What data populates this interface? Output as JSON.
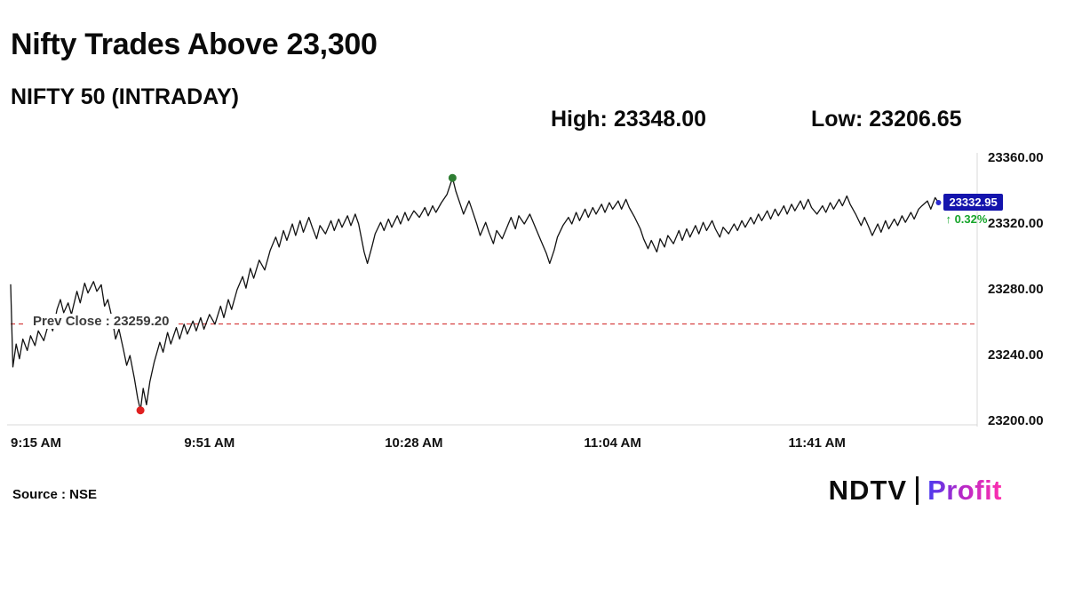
{
  "header": {
    "title": "Nifty Trades Above 23,300",
    "subtitle": "NIFTY 50 (INTRADAY)"
  },
  "stats": {
    "high": "High: 23348.00",
    "low": "Low: 23206.65"
  },
  "footer": {
    "source": "Source : NSE",
    "logo_ndtv": "NDTV",
    "logo_profit": "Profit"
  },
  "chart_data": {
    "type": "line",
    "title": "NIFTY 50 (INTRADAY)",
    "x_unit": "minutes since 9:15 AM",
    "x_domain": [
      0,
      175
    ],
    "y_domain": [
      23200,
      23360
    ],
    "grid": "off",
    "line_color": "#121212",
    "y_ticks": [
      {
        "value": 23360,
        "label": "23360.00"
      },
      {
        "value": 23320,
        "label": "23320.00"
      },
      {
        "value": 23280,
        "label": "23280.00"
      },
      {
        "value": 23240,
        "label": "23240.00"
      },
      {
        "value": 23200,
        "label": "23200.00"
      }
    ],
    "x_ticks": [
      {
        "minute": 0,
        "label": "9:15 AM"
      },
      {
        "minute": 36,
        "label": "9:51 AM"
      },
      {
        "minute": 73,
        "label": "10:28 AM"
      },
      {
        "minute": 109,
        "label": "11:04 AM"
      },
      {
        "minute": 146,
        "label": "11:41 AM"
      }
    ],
    "prev_close": {
      "value": 23259.2,
      "label": "Prev Close : 23259.20",
      "color": "#d64040"
    },
    "high": {
      "minute": 80,
      "value": 23348.0,
      "label": "High: 23348.00",
      "marker_color": "#2e7d32"
    },
    "low": {
      "minute": 23.5,
      "value": 23206.65,
      "label": "Low: 23206.65",
      "marker_color": "#e02020"
    },
    "last": {
      "value": 23332.95,
      "label": "23332.95",
      "change_label": "↑ 0.32%",
      "change_color": "#17a52b",
      "chip_bg": "#1414ad",
      "marker_color": "#2a2ad0"
    },
    "series": [
      {
        "name": "NIFTY 50",
        "points": [
          [
            0,
            23283
          ],
          [
            0.4,
            23233
          ],
          [
            1,
            23247
          ],
          [
            1.6,
            23238
          ],
          [
            2.2,
            23250
          ],
          [
            3,
            23243
          ],
          [
            3.6,
            23252
          ],
          [
            4.4,
            23246
          ],
          [
            5,
            23255
          ],
          [
            6,
            23249
          ],
          [
            7,
            23261
          ],
          [
            7.6,
            23255
          ],
          [
            8.4,
            23268
          ],
          [
            9,
            23274
          ],
          [
            9.6,
            23266
          ],
          [
            10.4,
            23272
          ],
          [
            11,
            23265
          ],
          [
            12,
            23279
          ],
          [
            12.6,
            23272
          ],
          [
            13.4,
            23284
          ],
          [
            14,
            23278
          ],
          [
            15,
            23285
          ],
          [
            15.6,
            23279
          ],
          [
            16.4,
            23283
          ],
          [
            17,
            23270
          ],
          [
            17.6,
            23274
          ],
          [
            18.4,
            23262
          ],
          [
            19,
            23250
          ],
          [
            19.6,
            23256
          ],
          [
            20.4,
            23244
          ],
          [
            21,
            23234
          ],
          [
            21.6,
            23240
          ],
          [
            22.4,
            23226
          ],
          [
            23,
            23214
          ],
          [
            23.5,
            23206.65
          ],
          [
            24,
            23220
          ],
          [
            24.6,
            23210
          ],
          [
            25.2,
            23224
          ],
          [
            26,
            23236
          ],
          [
            27,
            23248
          ],
          [
            27.6,
            23242
          ],
          [
            28.4,
            23254
          ],
          [
            29,
            23247
          ],
          [
            30,
            23257
          ],
          [
            30.6,
            23250
          ],
          [
            31.4,
            23259
          ],
          [
            32,
            23253
          ],
          [
            33,
            23261
          ],
          [
            33.6,
            23255
          ],
          [
            34.4,
            23263
          ],
          [
            35,
            23256
          ],
          [
            36,
            23265
          ],
          [
            37,
            23259
          ],
          [
            38,
            23270
          ],
          [
            38.6,
            23263
          ],
          [
            39.4,
            23274
          ],
          [
            40,
            23268
          ],
          [
            41,
            23280
          ],
          [
            42,
            23288
          ],
          [
            42.6,
            23281
          ],
          [
            43.4,
            23293
          ],
          [
            44,
            23287
          ],
          [
            45,
            23298
          ],
          [
            46,
            23292
          ],
          [
            47,
            23304
          ],
          [
            48,
            23312
          ],
          [
            48.6,
            23306
          ],
          [
            49.4,
            23316
          ],
          [
            50,
            23310
          ],
          [
            51,
            23320
          ],
          [
            51.6,
            23313
          ],
          [
            52.4,
            23322
          ],
          [
            53,
            23315
          ],
          [
            54,
            23324
          ],
          [
            54.6,
            23318
          ],
          [
            55.4,
            23311
          ],
          [
            56,
            23319
          ],
          [
            57,
            23314
          ],
          [
            58,
            23322
          ],
          [
            58.6,
            23316
          ],
          [
            59.4,
            23323
          ],
          [
            60,
            23318
          ],
          [
            61,
            23325
          ],
          [
            61.6,
            23319
          ],
          [
            62.4,
            23326
          ],
          [
            63,
            23320
          ],
          [
            64,
            23303
          ],
          [
            64.6,
            23296
          ],
          [
            65.4,
            23306
          ],
          [
            66,
            23314
          ],
          [
            67,
            23321
          ],
          [
            67.6,
            23316
          ],
          [
            68.4,
            23323
          ],
          [
            69,
            23318
          ],
          [
            70,
            23325
          ],
          [
            70.6,
            23320
          ],
          [
            71.4,
            23327
          ],
          [
            72,
            23322
          ],
          [
            73,
            23328
          ],
          [
            74,
            23324
          ],
          [
            75,
            23330
          ],
          [
            75.6,
            23325
          ],
          [
            76.4,
            23331
          ],
          [
            77,
            23327
          ],
          [
            78,
            23333
          ],
          [
            79,
            23338
          ],
          [
            80,
            23348
          ],
          [
            80.6,
            23340
          ],
          [
            81.4,
            23332
          ],
          [
            82,
            23326
          ],
          [
            83,
            23334
          ],
          [
            83.6,
            23328
          ],
          [
            84.4,
            23320
          ],
          [
            85,
            23313
          ],
          [
            86,
            23321
          ],
          [
            86.6,
            23315
          ],
          [
            87.4,
            23308
          ],
          [
            88,
            23316
          ],
          [
            89,
            23311
          ],
          [
            90,
            23319
          ],
          [
            90.6,
            23324
          ],
          [
            91.4,
            23317
          ],
          [
            92,
            23325
          ],
          [
            93,
            23320
          ],
          [
            94,
            23326
          ],
          [
            95,
            23318
          ],
          [
            96,
            23310
          ],
          [
            97,
            23302
          ],
          [
            97.6,
            23296
          ],
          [
            98.4,
            23304
          ],
          [
            99,
            23312
          ],
          [
            100,
            23319
          ],
          [
            101,
            23324
          ],
          [
            101.6,
            23320
          ],
          [
            102.4,
            23327
          ],
          [
            103,
            23322
          ],
          [
            104,
            23329
          ],
          [
            104.6,
            23324
          ],
          [
            105.4,
            23330
          ],
          [
            106,
            23326
          ],
          [
            107,
            23332
          ],
          [
            107.6,
            23327
          ],
          [
            108.4,
            23333
          ],
          [
            109,
            23329
          ],
          [
            110,
            23334
          ],
          [
            110.6,
            23329
          ],
          [
            111.4,
            23335
          ],
          [
            112,
            23330
          ],
          [
            113,
            23324
          ],
          [
            114,
            23317
          ],
          [
            114.6,
            23311
          ],
          [
            115.4,
            23305
          ],
          [
            116,
            23310
          ],
          [
            117,
            23303
          ],
          [
            117.6,
            23311
          ],
          [
            118.4,
            23306
          ],
          [
            119,
            23313
          ],
          [
            120,
            23308
          ],
          [
            121,
            23316
          ],
          [
            121.6,
            23310
          ],
          [
            122.4,
            23317
          ],
          [
            123,
            23312
          ],
          [
            124,
            23319
          ],
          [
            124.6,
            23314
          ],
          [
            125.4,
            23321
          ],
          [
            126,
            23316
          ],
          [
            127,
            23322
          ],
          [
            127.6,
            23317
          ],
          [
            128.4,
            23312
          ],
          [
            129,
            23318
          ],
          [
            130,
            23314
          ],
          [
            131,
            23320
          ],
          [
            131.6,
            23316
          ],
          [
            132.4,
            23322
          ],
          [
            133,
            23318
          ],
          [
            134,
            23324
          ],
          [
            134.6,
            23320
          ],
          [
            135.4,
            23326
          ],
          [
            136,
            23322
          ],
          [
            137,
            23328
          ],
          [
            137.6,
            23323
          ],
          [
            138.4,
            23329
          ],
          [
            139,
            23325
          ],
          [
            140,
            23331
          ],
          [
            140.6,
            23326
          ],
          [
            141.4,
            23332
          ],
          [
            142,
            23328
          ],
          [
            143,
            23334
          ],
          [
            143.6,
            23329
          ],
          [
            144.4,
            23335
          ],
          [
            145,
            23330
          ],
          [
            146,
            23326
          ],
          [
            147,
            23331
          ],
          [
            147.6,
            23327
          ],
          [
            148.4,
            23333
          ],
          [
            149,
            23329
          ],
          [
            150,
            23335
          ],
          [
            150.6,
            23331
          ],
          [
            151.4,
            23337
          ],
          [
            152,
            23332
          ],
          [
            153,
            23326
          ],
          [
            154,
            23319
          ],
          [
            154.6,
            23324
          ],
          [
            155.4,
            23318
          ],
          [
            156,
            23313
          ],
          [
            157,
            23320
          ],
          [
            157.6,
            23315
          ],
          [
            158.4,
            23322
          ],
          [
            159,
            23317
          ],
          [
            160,
            23323
          ],
          [
            160.6,
            23319
          ],
          [
            161.4,
            23325
          ],
          [
            162,
            23321
          ],
          [
            163,
            23327
          ],
          [
            163.6,
            23323
          ],
          [
            164.4,
            23329
          ],
          [
            165,
            23331
          ],
          [
            166,
            23334
          ],
          [
            166.6,
            23329
          ],
          [
            167.4,
            23336
          ],
          [
            168,
            23332.95
          ]
        ]
      }
    ]
  }
}
